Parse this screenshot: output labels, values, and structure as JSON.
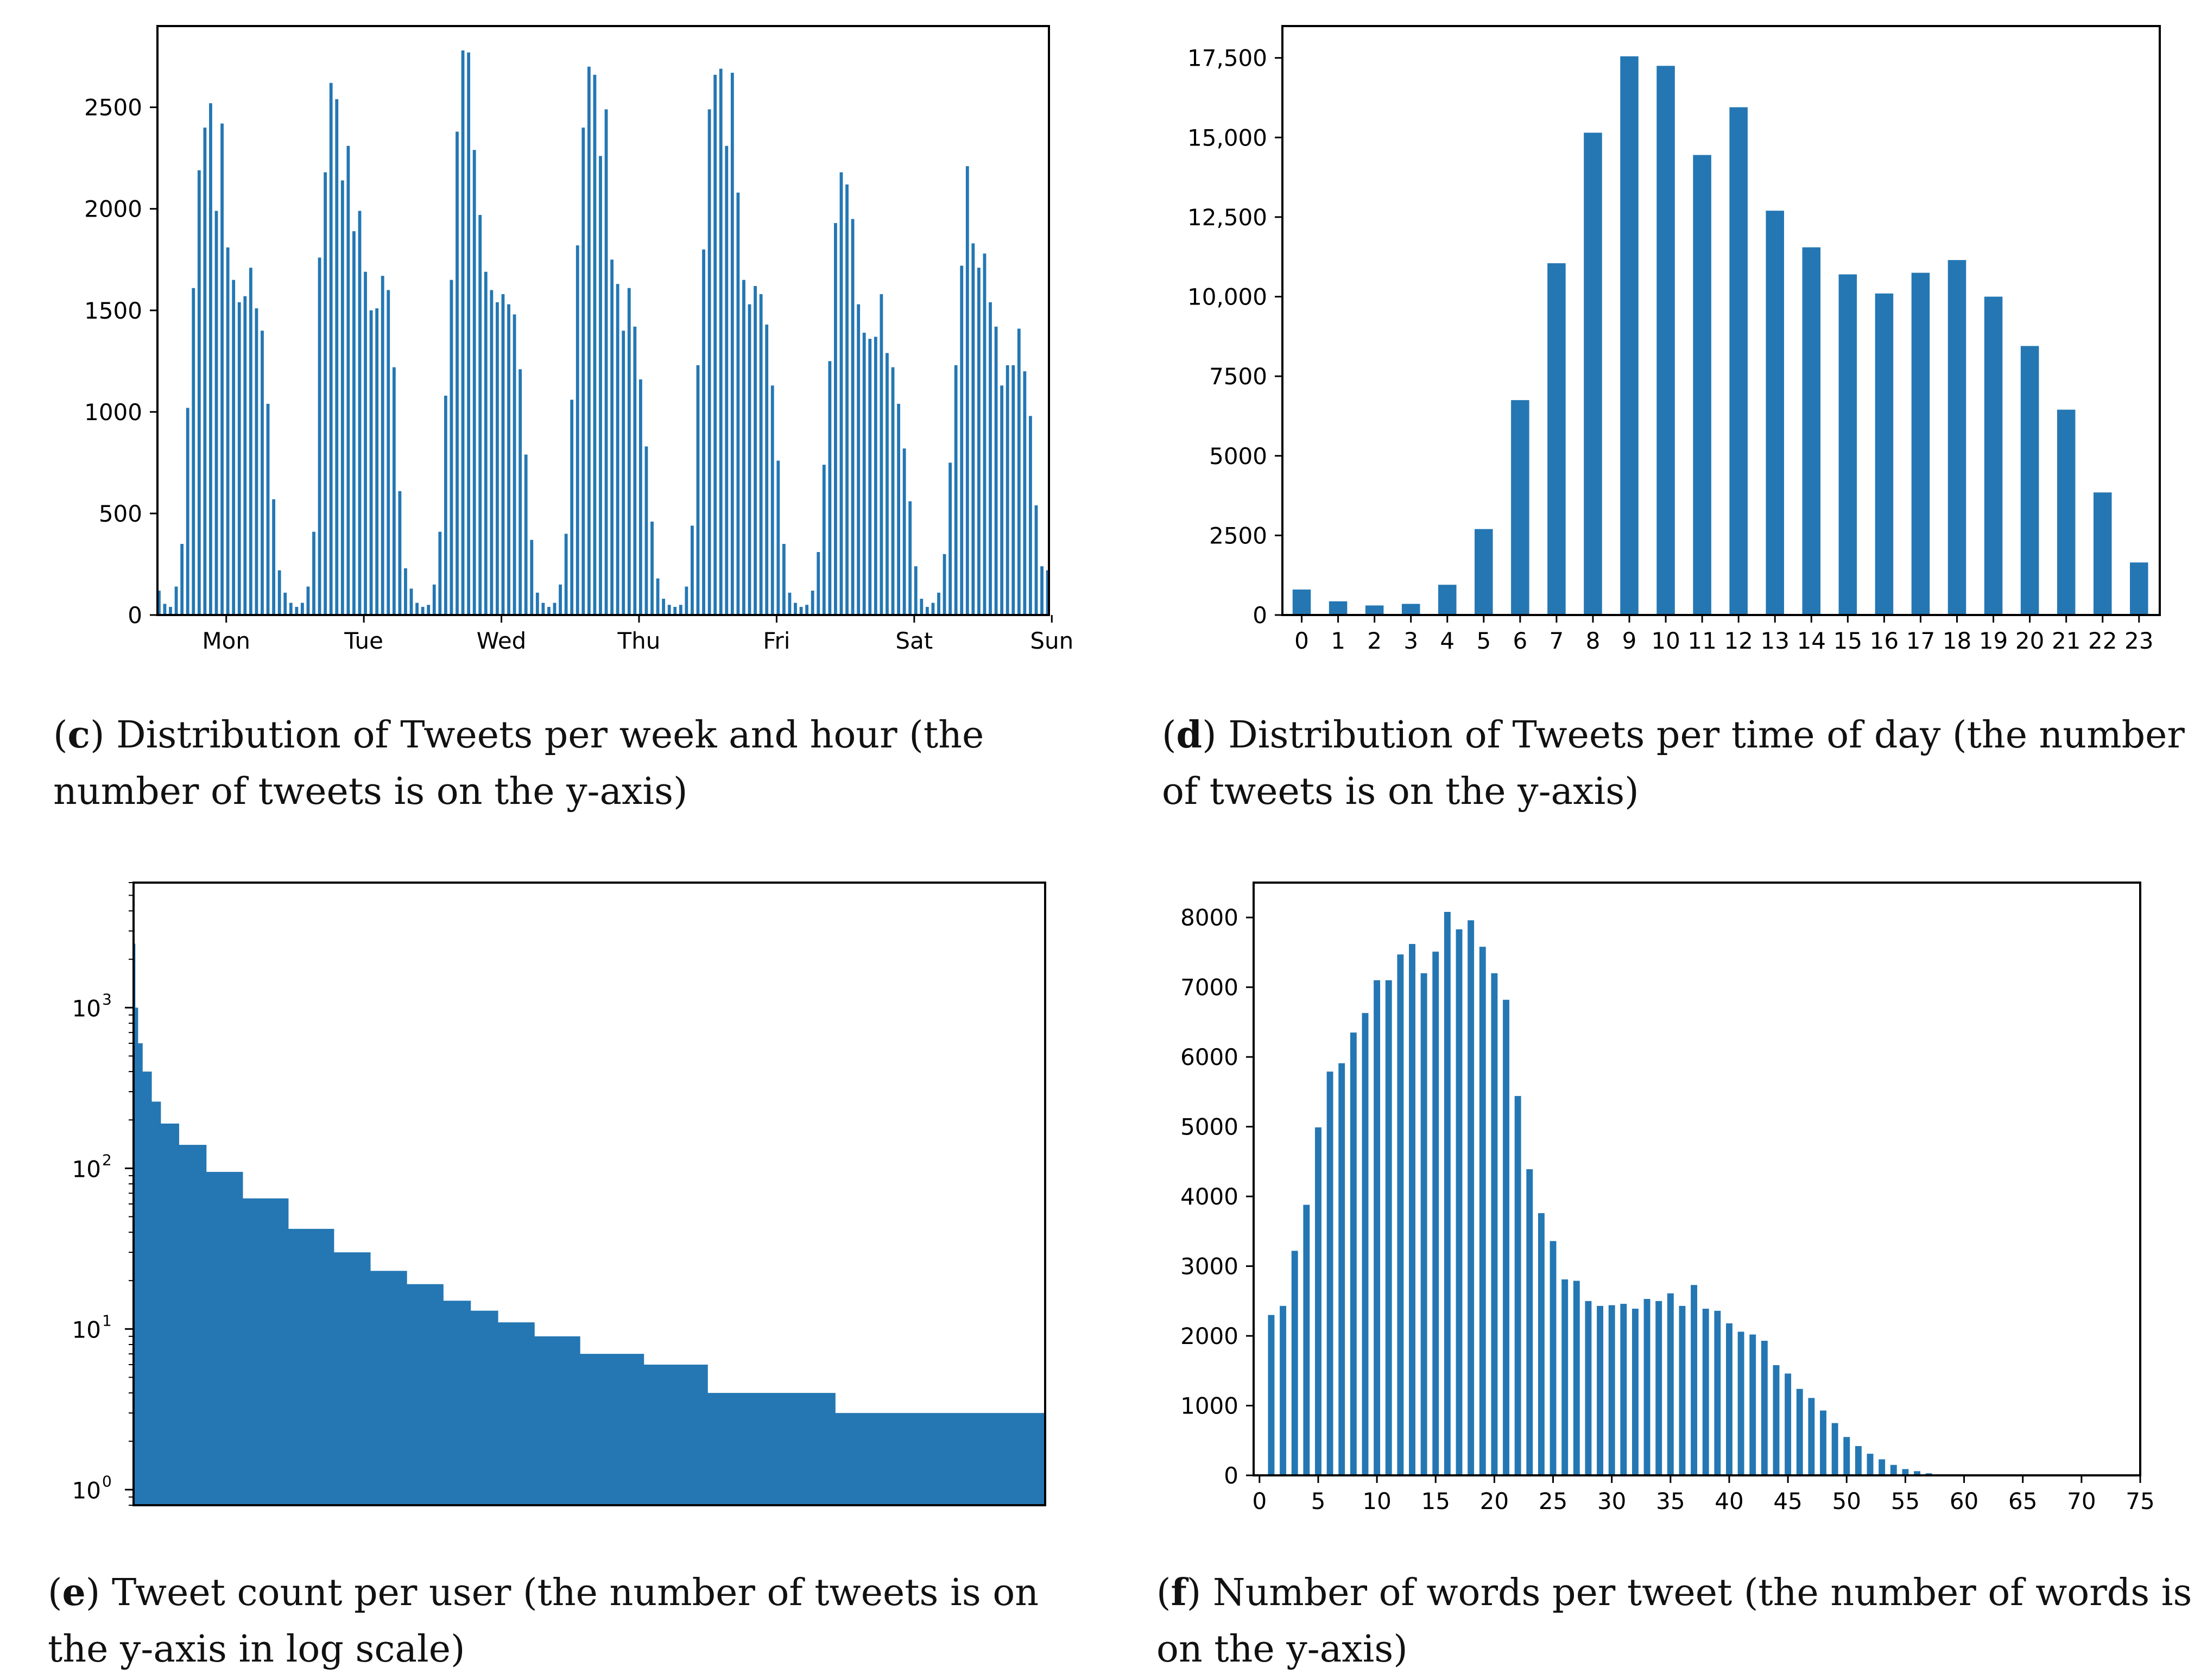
{
  "colors": {
    "bar": "#2477b3",
    "axis": "#000000",
    "text": "#000000"
  },
  "panels": [
    {
      "id": "c",
      "caption": {
        "label": "c",
        "text": "Distribution of Tweets per week and hour (the number of tweets is on the y-axis)"
      }
    },
    {
      "id": "d",
      "caption": {
        "label": "d",
        "text": "Distribution of Tweets per time of day (the number of tweets is on the y-axis)"
      }
    },
    {
      "id": "e",
      "caption": {
        "label": "e",
        "text": "Tweet count per user (the number of tweets is on the y-axis in log scale)"
      }
    },
    {
      "id": "f",
      "caption": {
        "label": "f",
        "text": "Number of words per tweet (the number of words is on the y-axis)"
      }
    }
  ],
  "chart_data": [
    {
      "id": "c",
      "type": "bar",
      "title": "",
      "xlabel": "",
      "ylabel": "",
      "ylim": [
        0,
        2900
      ],
      "yticks": [
        0,
        500,
        1000,
        1500,
        2000,
        2500
      ],
      "ytick_labels": [
        "0",
        "500",
        "1000",
        "1500",
        "2000",
        "2500"
      ],
      "day_labels": [
        "Mon",
        "Tue",
        "Wed",
        "Thu",
        "Fri",
        "Sat",
        "Sun"
      ],
      "values": [
        120,
        55,
        40,
        140,
        350,
        1020,
        1610,
        2190,
        2400,
        2520,
        1990,
        2420,
        1810,
        1650,
        1540,
        1570,
        1710,
        1510,
        1400,
        1040,
        570,
        220,
        110,
        60,
        40,
        60,
        140,
        410,
        1760,
        2180,
        2620,
        2540,
        2140,
        2310,
        1890,
        1990,
        1690,
        1500,
        1510,
        1670,
        1600,
        1220,
        610,
        230,
        130,
        60,
        40,
        50,
        150,
        410,
        1080,
        1650,
        2380,
        2780,
        2770,
        2290,
        1970,
        1690,
        1600,
        1540,
        1580,
        1530,
        1480,
        1210,
        790,
        370,
        110,
        60,
        40,
        60,
        150,
        400,
        1060,
        1820,
        2400,
        2700,
        2660,
        2260,
        2490,
        1750,
        1630,
        1400,
        1610,
        1420,
        1160,
        830,
        460,
        180,
        80,
        50,
        40,
        50,
        140,
        440,
        1230,
        1800,
        2490,
        2660,
        2690,
        2310,
        2670,
        2080,
        1650,
        1530,
        1620,
        1580,
        1430,
        1130,
        760,
        350,
        110,
        60,
        40,
        50,
        120,
        310,
        740,
        1250,
        1930,
        2180,
        2120,
        1950,
        1530,
        1390,
        1360,
        1370,
        1580,
        1290,
        1220,
        1040,
        820,
        560,
        240,
        80,
        40,
        60,
        110,
        300,
        750,
        1230,
        1720,
        2210,
        1830,
        1710,
        1780,
        1540,
        1420,
        1130,
        1230,
        1230,
        1410,
        1200,
        980,
        540,
        240,
        220
      ]
    },
    {
      "id": "d",
      "type": "bar",
      "title": "",
      "xlabel": "",
      "ylabel": "",
      "ylim": [
        0,
        18500
      ],
      "yticks": [
        0,
        2500,
        5000,
        7500,
        10000,
        12500,
        15000,
        17500
      ],
      "ytick_labels": [
        "0",
        "2500",
        "5000",
        "7500",
        "10,000",
        "12,500",
        "15,000",
        "17,500"
      ],
      "categories": [
        "0",
        "1",
        "2",
        "3",
        "4",
        "5",
        "6",
        "7",
        "8",
        "9",
        "10",
        "11",
        "12",
        "13",
        "14",
        "15",
        "16",
        "17",
        "18",
        "19",
        "20",
        "21",
        "22",
        "23"
      ],
      "values": [
        800,
        430,
        300,
        350,
        950,
        2700,
        6750,
        11050,
        15150,
        17550,
        17250,
        14450,
        15950,
        12700,
        11550,
        10700,
        10100,
        10750,
        11150,
        10000,
        8450,
        6450,
        3850,
        1650
      ]
    },
    {
      "id": "e",
      "type": "area",
      "title": "",
      "xlabel": "",
      "ylabel": "",
      "yscale": "log",
      "ylim": [
        0.8,
        6000
      ],
      "yticks": [
        1,
        10,
        100,
        1000
      ],
      "ytick_labels": [
        "10",
        "10",
        "10",
        "10"
      ],
      "ytick_exponents": [
        "0",
        "1",
        "2",
        "3"
      ],
      "xlim": [
        0,
        1
      ],
      "x": [
        0,
        0.002,
        0.005,
        0.01,
        0.02,
        0.03,
        0.05,
        0.08,
        0.12,
        0.17,
        0.22,
        0.26,
        0.3,
        0.34,
        0.37,
        0.4,
        0.44,
        0.49,
        0.56,
        0.63,
        0.77,
        1.0
      ],
      "values": [
        2500,
        1000,
        600,
        400,
        260,
        190,
        140,
        95,
        65,
        42,
        30,
        23,
        19,
        15,
        13,
        11,
        9,
        7,
        6,
        4,
        3,
        2
      ]
    },
    {
      "id": "f",
      "type": "bar",
      "title": "",
      "xlabel": "",
      "ylabel": "",
      "ylim": [
        0,
        8500
      ],
      "xlim": [
        -0.5,
        75
      ],
      "yticks": [
        0,
        1000,
        2000,
        3000,
        4000,
        5000,
        6000,
        7000,
        8000
      ],
      "ytick_labels": [
        "0",
        "1000",
        "2000",
        "3000",
        "4000",
        "5000",
        "6000",
        "7000",
        "8000"
      ],
      "xticks": [
        0,
        5,
        10,
        15,
        20,
        25,
        30,
        35,
        40,
        45,
        50,
        55,
        60,
        65,
        70,
        75
      ],
      "xtick_labels": [
        "0",
        "5",
        "10",
        "15",
        "20",
        "25",
        "30",
        "35",
        "40",
        "45",
        "50",
        "55",
        "60",
        "65",
        "70",
        "75"
      ],
      "x": [
        1,
        2,
        3,
        4,
        5,
        6,
        7,
        8,
        9,
        10,
        11,
        12,
        13,
        14,
        15,
        16,
        17,
        18,
        19,
        20,
        21,
        22,
        23,
        24,
        25,
        26,
        27,
        28,
        29,
        30,
        31,
        32,
        33,
        34,
        35,
        36,
        37,
        38,
        39,
        40,
        41,
        42,
        43,
        44,
        45,
        46,
        47,
        48,
        49,
        50,
        51,
        52,
        53,
        54,
        55,
        56,
        57,
        58
      ],
      "values": [
        2300,
        2430,
        3220,
        3880,
        4990,
        5790,
        5910,
        6350,
        6630,
        7100,
        7100,
        7470,
        7620,
        7200,
        7510,
        8080,
        7830,
        7960,
        7580,
        7200,
        6820,
        5440,
        4390,
        3760,
        3360,
        2810,
        2790,
        2500,
        2430,
        2440,
        2460,
        2390,
        2530,
        2500,
        2610,
        2430,
        2730,
        2390,
        2360,
        2180,
        2060,
        2020,
        1930,
        1580,
        1460,
        1240,
        1110,
        930,
        750,
        550,
        420,
        310,
        230,
        150,
        90,
        60,
        30,
        15
      ]
    }
  ]
}
